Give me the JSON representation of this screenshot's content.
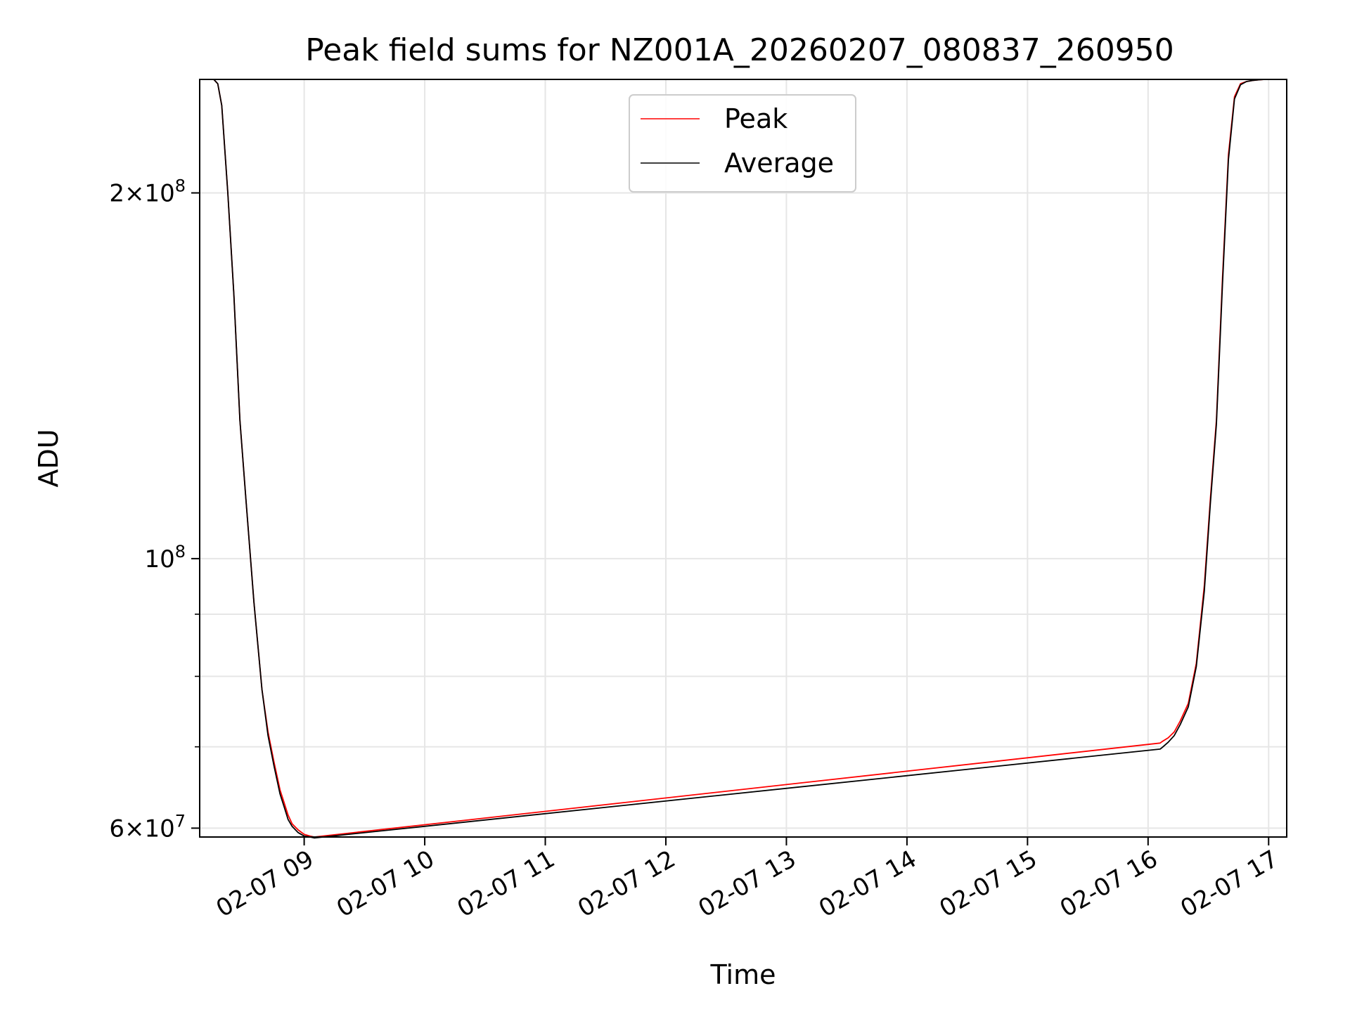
{
  "chart_data": {
    "type": "line",
    "title": "Peak field sums for NZ001A_20260207_080837_260950",
    "xlabel": "Time",
    "ylabel": "ADU",
    "yscale": "log",
    "ylim": [
      59000000,
      248000000
    ],
    "xlim": [
      "2026-02-07 08:08",
      "2026-02-07 17:09"
    ],
    "grid": true,
    "legend": {
      "placement": "top-center",
      "entries": [
        "Peak",
        "Average"
      ]
    },
    "x_ticks": [
      "02-07 09",
      "02-07 10",
      "02-07 11",
      "02-07 12",
      "02-07 13",
      "02-07 14",
      "02-07 15",
      "02-07 16",
      "02-07 17"
    ],
    "y_ticks": [
      {
        "base": "2",
        "exp": "8",
        "value": 200000000
      },
      {
        "base": "",
        "exp": "8",
        "value": 100000000
      },
      {
        "base": "6",
        "exp": "7",
        "value": 60000000
      }
    ],
    "y_minor_ticks": [
      70000000,
      80000000,
      90000000
    ],
    "series": [
      {
        "name": "Peak",
        "color": "#ff0000",
        "x": [
          "2026-02-07 08:08",
          "2026-02-07 08:15",
          "2026-02-07 08:17",
          "2026-02-07 08:19",
          "2026-02-07 08:22",
          "2026-02-07 08:25",
          "2026-02-07 08:28",
          "2026-02-07 08:31",
          "2026-02-07 08:35",
          "2026-02-07 08:39",
          "2026-02-07 08:42",
          "2026-02-07 08:45",
          "2026-02-07 08:48",
          "2026-02-07 08:50",
          "2026-02-07 08:52",
          "2026-02-07 08:54",
          "2026-02-07 08:57",
          "2026-02-07 09:00",
          "2026-02-07 09:03",
          "2026-02-07 09:05",
          "2026-02-07 16:06",
          "2026-02-07 16:07",
          "2026-02-07 16:10",
          "2026-02-07 16:13",
          "2026-02-07 16:16",
          "2026-02-07 16:20",
          "2026-02-07 16:24",
          "2026-02-07 16:28",
          "2026-02-07 16:31",
          "2026-02-07 16:34",
          "2026-02-07 16:37",
          "2026-02-07 16:40",
          "2026-02-07 16:43",
          "2026-02-07 16:46",
          "2026-02-07 16:49",
          "2026-02-07 16:52",
          "2026-02-07 16:55",
          "2026-02-07 16:58",
          "2026-02-07 17:09"
        ],
        "y": [
          248000000,
          248000000,
          246000000,
          236000000,
          200000000,
          165000000,
          130000000,
          112000000,
          92000000,
          78000000,
          72000000,
          68000000,
          64500000,
          63000000,
          61500000,
          60500000,
          59800000,
          59300000,
          59100000,
          59000000,
          70500000,
          70700000,
          71200000,
          72000000,
          73500000,
          76000000,
          82000000,
          95000000,
          112000000,
          130000000,
          170000000,
          215000000,
          240000000,
          246000000,
          247000000,
          247500000,
          247800000,
          248000000,
          248000000
        ]
      },
      {
        "name": "Average",
        "color": "#000000",
        "x": [
          "2026-02-07 08:08",
          "2026-02-07 08:15",
          "2026-02-07 08:17",
          "2026-02-07 08:19",
          "2026-02-07 08:22",
          "2026-02-07 08:25",
          "2026-02-07 08:28",
          "2026-02-07 08:31",
          "2026-02-07 08:35",
          "2026-02-07 08:39",
          "2026-02-07 08:42",
          "2026-02-07 08:45",
          "2026-02-07 08:48",
          "2026-02-07 08:50",
          "2026-02-07 08:52",
          "2026-02-07 08:54",
          "2026-02-07 08:57",
          "2026-02-07 09:00",
          "2026-02-07 09:03",
          "2026-02-07 09:05",
          "2026-02-07 16:06",
          "2026-02-07 16:07",
          "2026-02-07 16:10",
          "2026-02-07 16:13",
          "2026-02-07 16:16",
          "2026-02-07 16:20",
          "2026-02-07 16:24",
          "2026-02-07 16:28",
          "2026-02-07 16:31",
          "2026-02-07 16:34",
          "2026-02-07 16:37",
          "2026-02-07 16:40",
          "2026-02-07 16:43",
          "2026-02-07 16:46",
          "2026-02-07 16:49",
          "2026-02-07 16:52",
          "2026-02-07 16:55",
          "2026-02-07 16:58",
          "2026-02-07 17:09"
        ],
        "y": [
          248000000,
          248000000,
          246000000,
          236000000,
          200000000,
          165000000,
          130000000,
          112000000,
          92000000,
          78000000,
          71500000,
          67500000,
          64000000,
          62500000,
          61000000,
          60200000,
          59500000,
          59100000,
          59000000,
          58900000,
          69700000,
          69900000,
          70600000,
          71500000,
          73000000,
          75500000,
          81500000,
          94000000,
          111000000,
          129000000,
          168000000,
          213000000,
          239000000,
          245500000,
          247000000,
          247500000,
          247800000,
          248000000,
          248000000
        ]
      }
    ]
  }
}
